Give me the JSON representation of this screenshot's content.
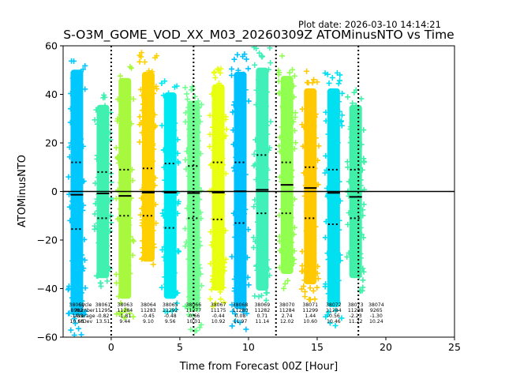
{
  "chart_data": {
    "type": "scatter",
    "title": "S-O3M_GOME_VOD_XX_M03_20260309Z ATOMinusNTO vs Time",
    "plot_date": "Plot date: 2026-03-10 14:14:21",
    "xlabel": "Time from Forecast 00Z [Hour]",
    "ylabel": "ATOMinusNTO",
    "xlim": [
      -3.5,
      25
    ],
    "ylim": [
      -60,
      60
    ],
    "xticks": [
      "0",
      "5",
      "10",
      "15",
      "20",
      "25"
    ],
    "xtick_values": [
      0,
      5,
      10,
      15,
      20,
      25
    ],
    "yticks": [
      "−60",
      "−40",
      "−20",
      "0",
      "20",
      "40",
      "60"
    ],
    "ytick_values": [
      -60,
      -40,
      -20,
      0,
      20,
      40,
      60
    ],
    "zero_line": 0,
    "vertical_dotted_lines": [
      0,
      6,
      12,
      18
    ],
    "groups": [
      {
        "x": -2.5,
        "cycle": "38060",
        "count": "8982",
        "mean": -1.33,
        "std": 10.66,
        "dots_upper": 12,
        "dots_lower": -15.5,
        "ymin": -60,
        "ymax": 59,
        "color": "#00c8ff"
      },
      {
        "x": -0.6,
        "cycle": "38061",
        "count": "11295",
        "mean": -0.82,
        "std": 13.51,
        "dots_upper": 8,
        "dots_lower": -11,
        "ymin": -42,
        "ymax": 42,
        "color": "#40f0b0"
      },
      {
        "x": 1.0,
        "cycle": "38063",
        "count": "11284",
        "mean": -1.81,
        "std": 9.44,
        "dots_upper": 9,
        "dots_lower": -10,
        "ymin": -52,
        "ymax": 55,
        "color": "#a8f840"
      },
      {
        "x": 2.7,
        "cycle": "38064",
        "count": "11283",
        "mean": -0.45,
        "std": 9.1,
        "dots_upper": 9.5,
        "dots_lower": -10,
        "ymin": -34,
        "ymax": 58,
        "color": "#ffd000"
      },
      {
        "x": 4.3,
        "cycle": "38065",
        "count": "11292",
        "mean": -0.48,
        "std": 9.56,
        "dots_upper": 11.5,
        "dots_lower": -15,
        "ymin": -52,
        "ymax": 48,
        "color": "#00e8f0"
      },
      {
        "x": 6.0,
        "cycle": "38066",
        "count": "11277",
        "mean": -0.66,
        "std": 10.01,
        "dots_upper": 10.5,
        "dots_lower": -11,
        "ymin": -58,
        "ymax": 44,
        "color": "#70ff90"
      },
      {
        "x": 7.8,
        "cycle": "38067",
        "count": "11175",
        "mean": -0.44,
        "std": 10.92,
        "dots_upper": 12,
        "dots_lower": -11.5,
        "ymin": -48,
        "ymax": 52,
        "color": "#e8ff10"
      },
      {
        "x": 9.4,
        "cycle": "38068",
        "count": "11280",
        "mean": 0.08,
        "std": 11.97,
        "dots_upper": 12,
        "dots_lower": -13,
        "ymin": -57,
        "ymax": 58,
        "color": "#00c0ff"
      },
      {
        "x": 11.0,
        "cycle": "38069",
        "count": "11282",
        "mean": 0.71,
        "std": 11.14,
        "dots_upper": 15,
        "dots_lower": -9,
        "ymin": -48,
        "ymax": 60,
        "color": "#40f0b8"
      },
      {
        "x": 12.8,
        "cycle": "38070",
        "count": "11284",
        "mean": 2.74,
        "std": 12.02,
        "dots_upper": 12,
        "dots_lower": -9,
        "ymin": -40,
        "ymax": 56,
        "color": "#90ff50"
      },
      {
        "x": 14.5,
        "cycle": "38071",
        "count": "11299",
        "mean": 1.44,
        "std": 10.6,
        "dots_upper": 10,
        "dots_lower": -11,
        "ymin": -45,
        "ymax": 50,
        "color": "#ffc800"
      },
      {
        "x": 16.2,
        "cycle": "38072",
        "count": "11284",
        "mean": -0.56,
        "std": 10.46,
        "dots_upper": 9,
        "dots_lower": -13.5,
        "ymin": -56,
        "ymax": 50,
        "color": "#00e0f0"
      },
      {
        "x": 17.8,
        "cycle": "38073",
        "count": "11288",
        "mean": -2.23,
        "std": 11.22,
        "dots_upper": 9,
        "dots_lower": -11,
        "ymin": -42,
        "ymax": 42,
        "color": "#40f0a8"
      },
      {
        "x": 19.3,
        "cycle": "38074",
        "count": "9265",
        "mean": -1.3,
        "std": 10.24,
        "dots_upper": null,
        "dots_lower": null,
        "ymin": null,
        "ymax": null,
        "color": "#a0f848"
      }
    ],
    "stats_overlay_labels": [
      "Cycle",
      "Number",
      "Average",
      "StDev"
    ]
  }
}
